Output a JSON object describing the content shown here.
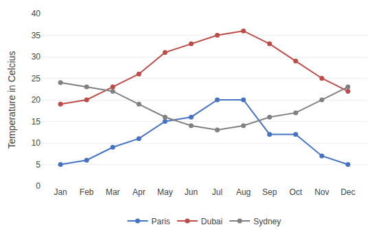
{
  "chart_data": {
    "type": "line",
    "categories": [
      "Jan",
      "Feb",
      "Mar",
      "Apr",
      "May",
      "Jun",
      "Jul",
      "Aug",
      "Sep",
      "Oct",
      "Nov",
      "Dec"
    ],
    "series": [
      {
        "name": "Paris",
        "color": "#4472C4",
        "values": [
          5,
          6,
          9,
          11,
          15,
          16,
          20,
          20,
          12,
          12,
          7,
          5
        ]
      },
      {
        "name": "Dubai",
        "color": "#BE4B48",
        "values": [
          19,
          20,
          23,
          26,
          31,
          33,
          35,
          36,
          33,
          29,
          25,
          22
        ]
      },
      {
        "name": "Sydney",
        "color": "#808080",
        "values": [
          24,
          23,
          22,
          19,
          16,
          14,
          13,
          14,
          16,
          17,
          20,
          23
        ]
      }
    ],
    "ylabel": "Temperature in Celcius",
    "ylim": [
      0,
      40
    ],
    "yticks": [
      0,
      5,
      10,
      15,
      20,
      25,
      30,
      35,
      40
    ],
    "grid": true,
    "legend": "bottom",
    "marker": "circle"
  }
}
